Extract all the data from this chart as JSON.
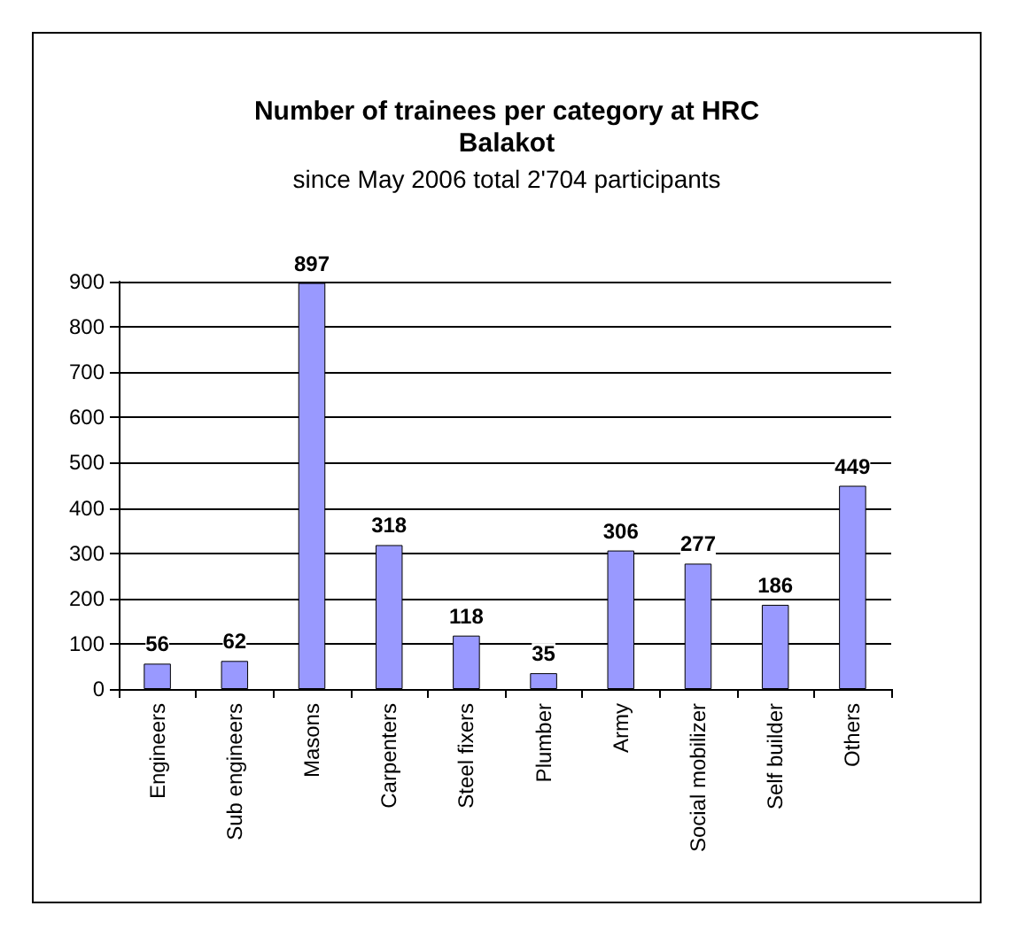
{
  "chart_data": {
    "type": "bar",
    "title": "Number of trainees per category at HRC\nBalakot",
    "subtitle": "since May 2006 total 2'704 participants",
    "categories": [
      "Engineers",
      "Sub engineers",
      "Masons",
      "Carpenters",
      "Steel fixers",
      "Plumber",
      "Army",
      "Social mobilizer",
      "Self builder",
      "Others"
    ],
    "values": [
      56,
      62,
      897,
      318,
      118,
      35,
      306,
      277,
      186,
      449
    ],
    "color": "#9999ff",
    "ylim": [
      0,
      900
    ],
    "yticks": [
      0,
      100,
      200,
      300,
      400,
      500,
      600,
      700,
      800,
      900
    ],
    "grid": "y",
    "data_labels": true
  }
}
